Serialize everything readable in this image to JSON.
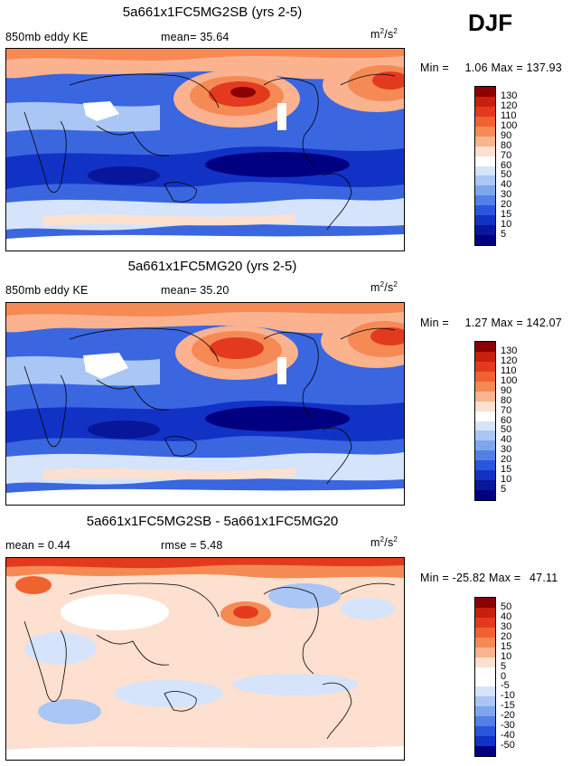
{
  "season": "DJF",
  "panels": [
    {
      "title": "5a661x1FC5MG2SB (yrs 2-5)",
      "left_label": "850mb eddy KE",
      "mid_label": "mean=  35.64",
      "units": "m²/s²",
      "min_label": "Min =",
      "min_value": "1.06",
      "max_label": "Max =",
      "max_value": "137.93",
      "levels": [
        "130",
        "120",
        "110",
        "100",
        "90",
        "80",
        "70",
        "60",
        "50",
        "40",
        "30",
        "20",
        "15",
        "10",
        "5"
      ],
      "colors": [
        "#8b0000",
        "#c8200e",
        "#e33a1f",
        "#f0622f",
        "#f58a55",
        "#fbb28f",
        "#fde0cf",
        "#ffffff",
        "#d5e4fb",
        "#a9c6f5",
        "#7ea6ef",
        "#527fe8",
        "#2a56de",
        "#1232c6",
        "#08169a",
        "#000080"
      ]
    },
    {
      "title": "5a661x1FC5MG20 (yrs 2-5)",
      "left_label": "850mb eddy KE",
      "mid_label": "mean=  35.20",
      "units": "m²/s²",
      "min_label": "Min =",
      "min_value": "1.27",
      "max_label": "Max =",
      "max_value": "142.07",
      "levels": [
        "130",
        "120",
        "110",
        "100",
        "90",
        "80",
        "70",
        "60",
        "50",
        "40",
        "30",
        "20",
        "15",
        "10",
        "5"
      ],
      "colors": [
        "#8b0000",
        "#c8200e",
        "#e33a1f",
        "#f0622f",
        "#f58a55",
        "#fbb28f",
        "#fde0cf",
        "#ffffff",
        "#d5e4fb",
        "#a9c6f5",
        "#7ea6ef",
        "#527fe8",
        "#2a56de",
        "#1232c6",
        "#08169a",
        "#000080"
      ]
    },
    {
      "title": "5a661x1FC5MG2SB - 5a661x1FC5MG20",
      "left_label": "mean =   0.44",
      "mid_label": "rmse =   5.48",
      "units": "m²/s²",
      "min_label": "Min =",
      "min_value": "-25.82",
      "max_label": "Max =",
      "max_value": "47.11",
      "levels": [
        "50",
        "40",
        "30",
        "20",
        "15",
        "10",
        "5",
        "0",
        "-5",
        "-10",
        "-15",
        "-20",
        "-30",
        "-40",
        "-50"
      ],
      "colors": [
        "#8b0000",
        "#c8200e",
        "#e33a1f",
        "#f0622f",
        "#f58a55",
        "#fbb28f",
        "#fde0cf",
        "#ffffff",
        "#ffffff",
        "#d5e4fb",
        "#a9c6f5",
        "#7ea6ef",
        "#527fe8",
        "#2a56de",
        "#1232c6",
        "#000080"
      ]
    }
  ]
}
